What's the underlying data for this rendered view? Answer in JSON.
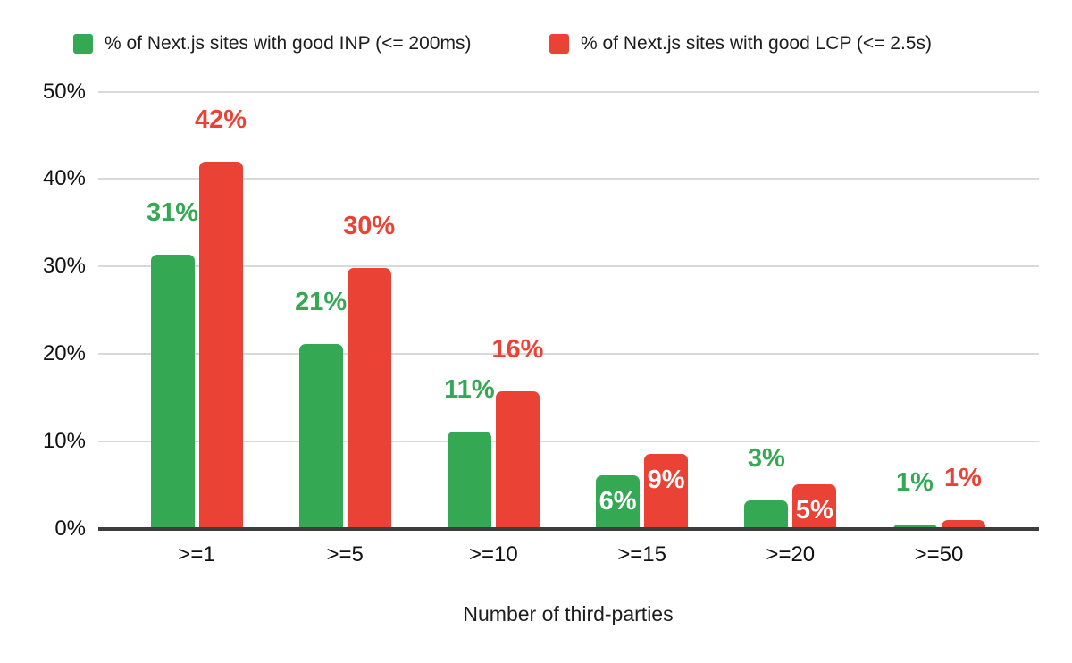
{
  "chart_data": {
    "type": "bar",
    "title": "",
    "categories": [
      ">=1",
      ">=5",
      ">=10",
      ">=15",
      ">=20",
      ">=50"
    ],
    "series": [
      {
        "name": "% of Next.js sites with good INP (<= 200ms)",
        "color": "#34a853",
        "values": [
          31.4,
          21.1,
          11.1,
          6.1,
          3.3,
          0.5
        ],
        "labels": [
          "31%",
          "21%",
          "11%",
          "6%",
          "3%",
          "1%"
        ],
        "label_inside": [
          false,
          false,
          false,
          true,
          false,
          false
        ]
      },
      {
        "name": "% of Next.js sites with good LCP (<= 2.5s)",
        "color": "#ea4335",
        "values": [
          42.0,
          29.8,
          15.7,
          8.6,
          5.1,
          1.0
        ],
        "labels": [
          "42%",
          "30%",
          "16%",
          "9%",
          "5%",
          "1%"
        ],
        "label_inside": [
          false,
          false,
          false,
          true,
          true,
          false
        ]
      }
    ],
    "xlabel": "Number of third-parties",
    "ylabel": "",
    "y_ticks": [
      "0%",
      "10%",
      "20%",
      "30%",
      "40%",
      "50%"
    ],
    "ylim": [
      0,
      50
    ],
    "grid": true,
    "legend_position": "top",
    "inside_label_color": "#ffffff",
    "grid_color": "#d9d9d9",
    "axis_color": "#3c3c3c",
    "text_color": "#111111"
  }
}
